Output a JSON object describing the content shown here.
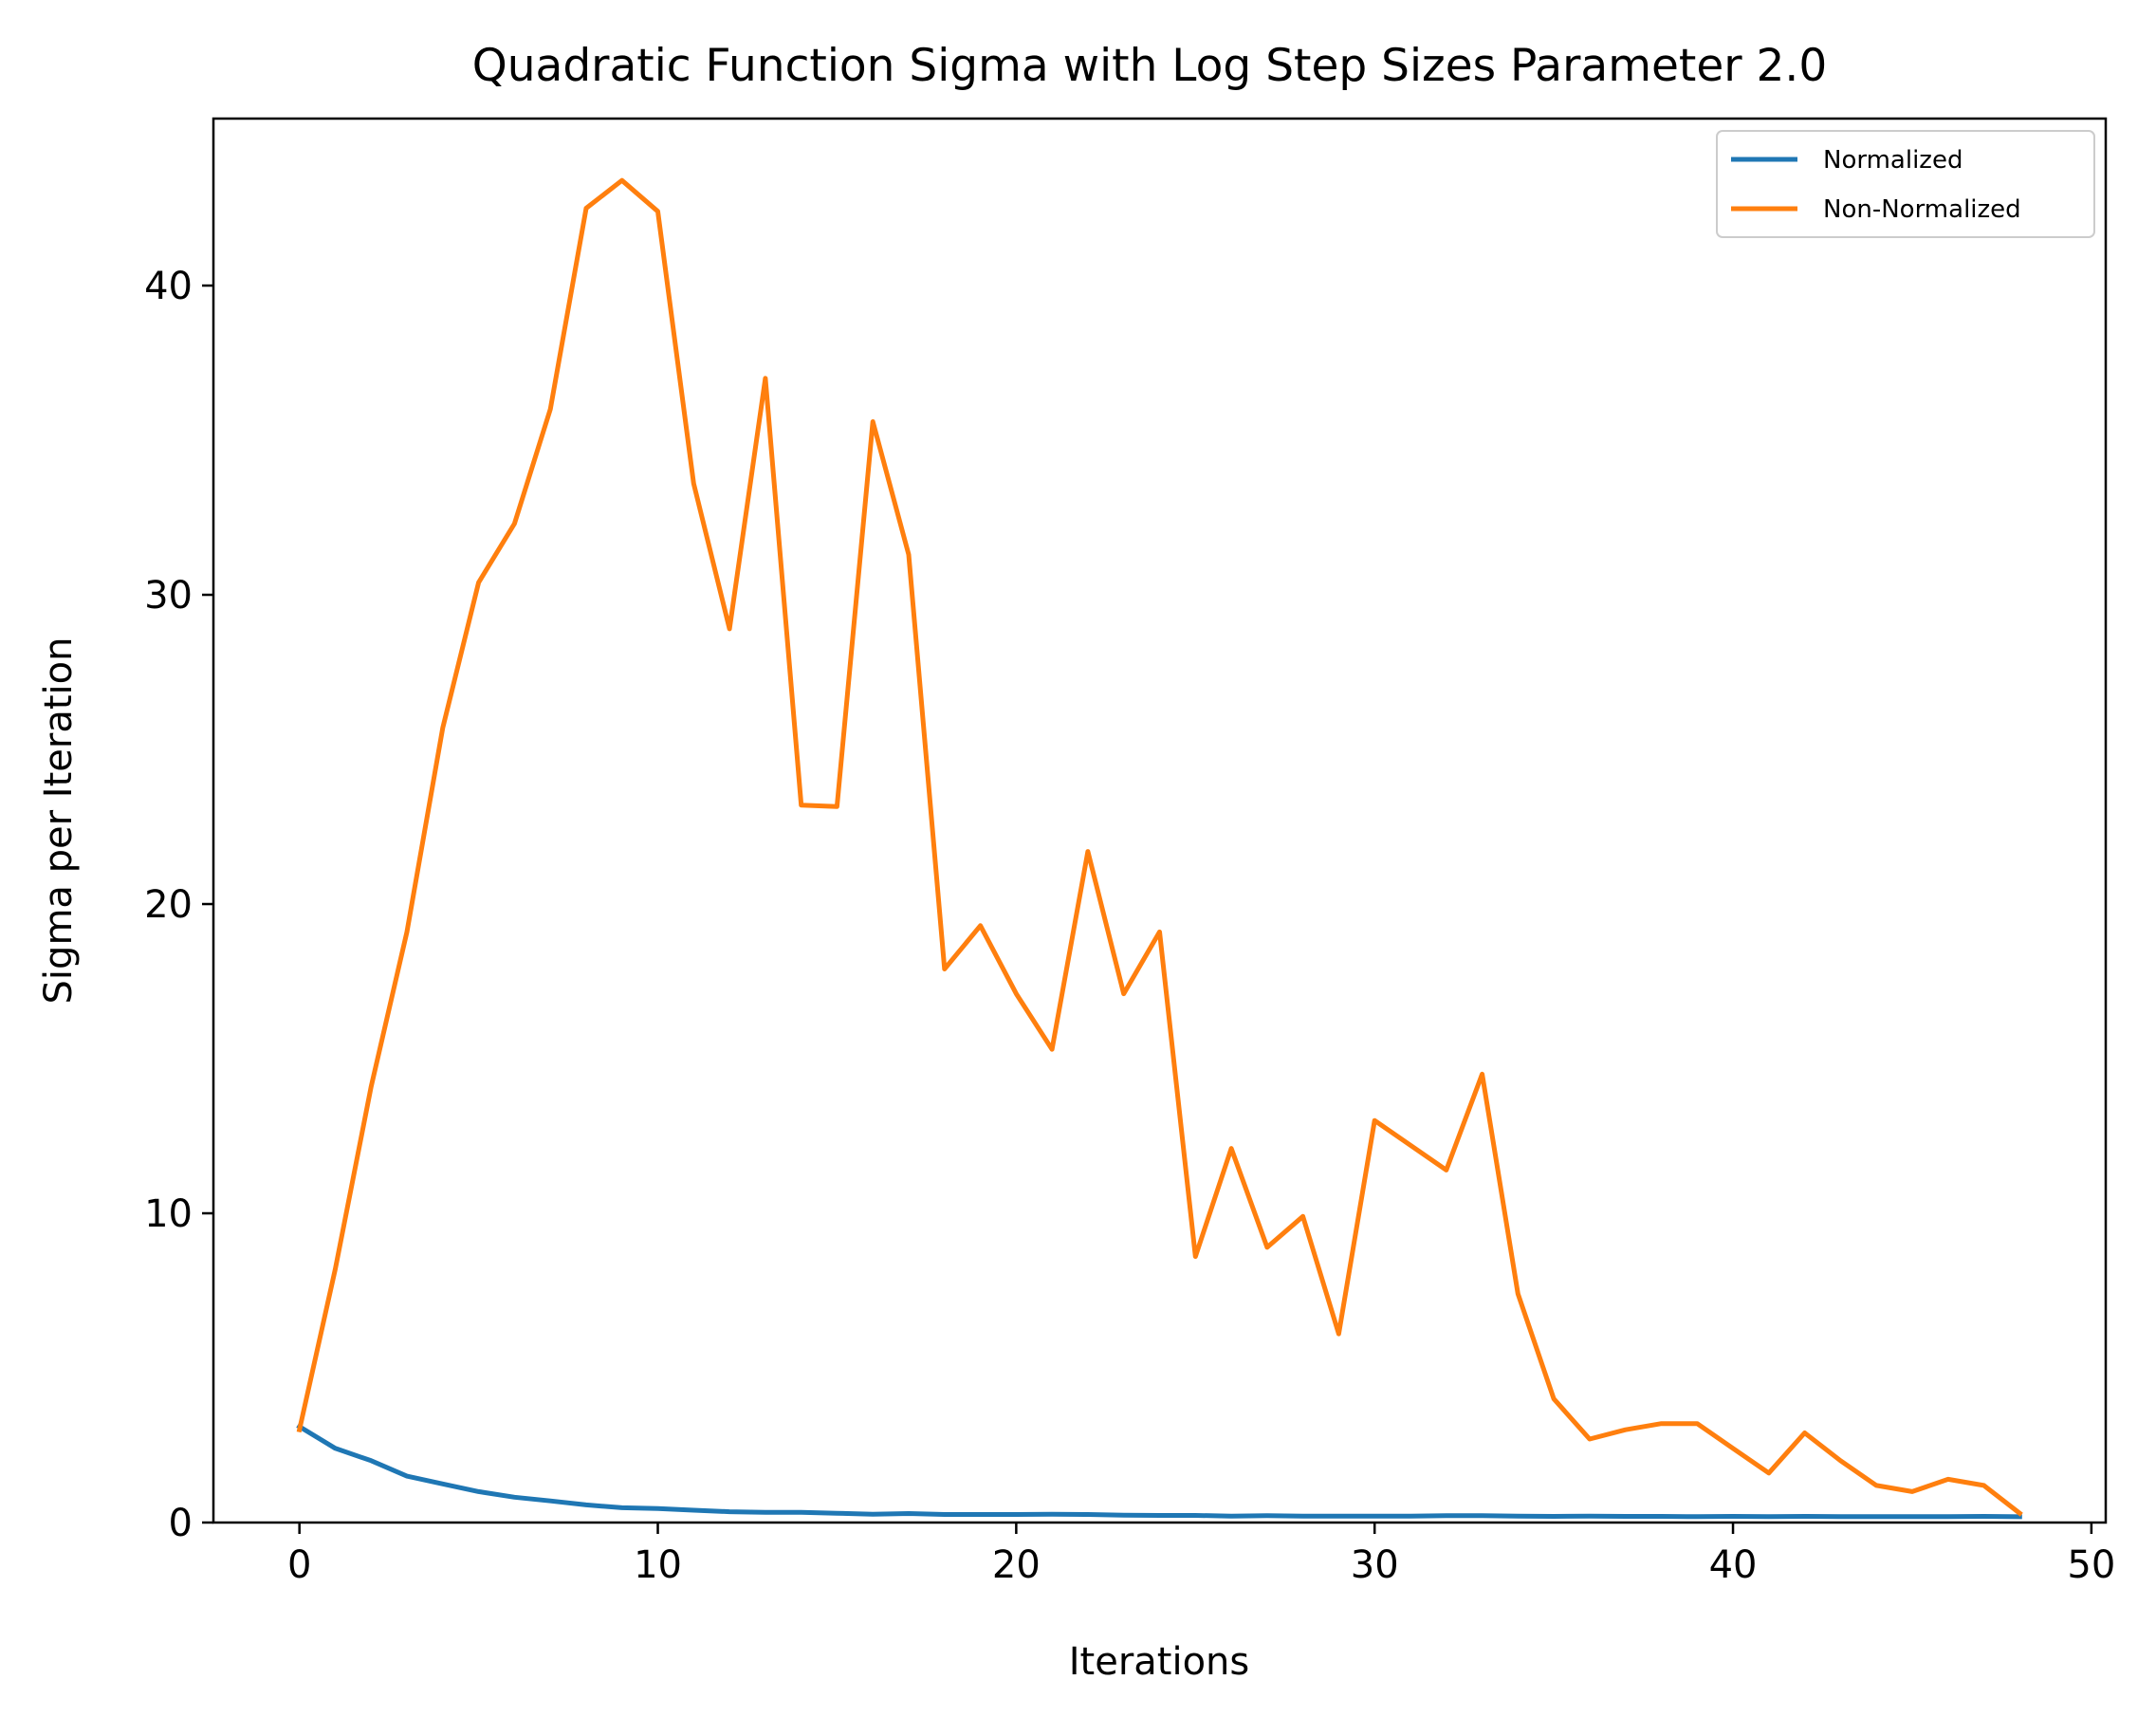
{
  "chart_data": {
    "type": "line",
    "title": "Quadratic Function Sigma with Log Step Sizes Parameter 2.0",
    "xlabel": "Iterations",
    "ylabel": "Sigma per Iteration",
    "xlim": [
      -2.4,
      50.4
    ],
    "ylim": [
      0,
      45.4
    ],
    "xticks": [
      0,
      10,
      20,
      30,
      40,
      50
    ],
    "yticks": [
      0,
      10,
      20,
      30,
      40
    ],
    "grid": false,
    "legend_position": "top-right",
    "x": [
      0,
      1,
      2,
      3,
      4,
      5,
      6,
      7,
      8,
      9,
      10,
      11,
      12,
      13,
      14,
      15,
      16,
      17,
      18,
      19,
      20,
      21,
      22,
      23,
      24,
      25,
      26,
      27,
      28,
      29,
      30,
      31,
      32,
      33,
      34,
      35,
      36,
      37,
      38,
      39,
      40,
      41,
      42,
      43,
      44,
      45,
      46,
      47,
      48
    ],
    "series": [
      {
        "name": "Normalized",
        "color": "#1f77b4",
        "values": [
          3.1,
          2.4,
          2.0,
          1.5,
          1.25,
          1.0,
          0.82,
          0.7,
          0.57,
          0.48,
          0.45,
          0.4,
          0.35,
          0.33,
          0.33,
          0.3,
          0.27,
          0.29,
          0.26,
          0.26,
          0.26,
          0.27,
          0.26,
          0.24,
          0.23,
          0.23,
          0.21,
          0.22,
          0.21,
          0.21,
          0.21,
          0.21,
          0.22,
          0.22,
          0.21,
          0.2,
          0.21,
          0.2,
          0.2,
          0.19,
          0.2,
          0.19,
          0.2,
          0.19,
          0.19,
          0.19,
          0.19,
          0.2,
          0.19
        ]
      },
      {
        "name": "Non-Normalized",
        "color": "#ff7f0e",
        "values": [
          3.0,
          8.2,
          14.1,
          19.1,
          25.7,
          30.4,
          32.3,
          36.0,
          42.5,
          43.4,
          42.4,
          33.6,
          28.9,
          37.0,
          23.2,
          23.15,
          35.6,
          31.3,
          17.9,
          19.3,
          17.1,
          15.3,
          21.7,
          17.1,
          19.1,
          8.6,
          12.1,
          8.9,
          9.9,
          6.1,
          13.0,
          12.2,
          11.4,
          14.5,
          7.4,
          4.0,
          2.7,
          3.0,
          3.2,
          3.2,
          2.4,
          1.6,
          2.9,
          2.0,
          1.2,
          1.0,
          1.4,
          1.2,
          0.3
        ]
      }
    ]
  }
}
